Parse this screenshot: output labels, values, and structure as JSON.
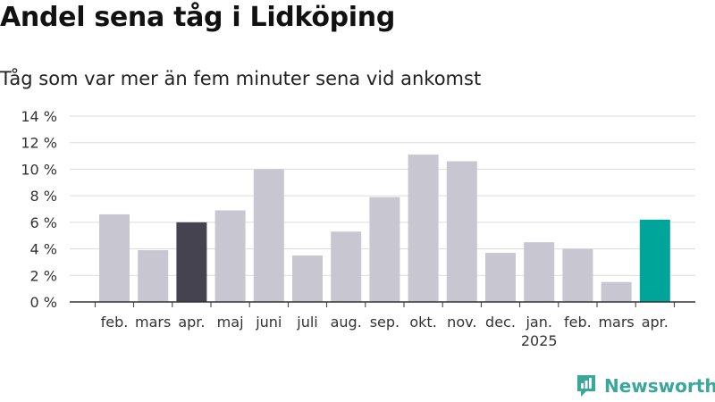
{
  "chart_data": {
    "type": "bar",
    "title": "Andel sena tåg i Lidköping",
    "subtitle": "Tåg som var mer än fem minuter sena vid ankomst",
    "categories": [
      "feb.",
      "mars",
      "apr.",
      "maj",
      "juni",
      "juli",
      "aug.",
      "sep.",
      "okt.",
      "nov.",
      "dec.",
      "jan.",
      "feb.",
      "mars",
      "apr."
    ],
    "year_label": "2025",
    "year_label_at": "jan.",
    "values": [
      6.6,
      3.9,
      6.0,
      6.9,
      10.0,
      3.5,
      5.3,
      7.9,
      11.1,
      10.6,
      3.7,
      4.5,
      4.0,
      1.5,
      6.2
    ],
    "ylim": [
      0,
      14
    ],
    "yticks": [
      0,
      2,
      4,
      6,
      8,
      10,
      12,
      14
    ],
    "ytick_suffix": " %",
    "colors": {
      "default": "#c8c6d0",
      "highlight_last_year": "#45434f",
      "highlight_current": "#00a59a"
    },
    "bar_colors": [
      "default",
      "default",
      "highlight_last_year",
      "default",
      "default",
      "default",
      "default",
      "default",
      "default",
      "default",
      "default",
      "default",
      "default",
      "default",
      "highlight_current"
    ],
    "grid": true,
    "xlabel": "",
    "ylabel": ""
  },
  "brand": {
    "name": "Newsworthy",
    "icon": "newsworthy-logo-icon",
    "color": "#3aa79b"
  }
}
